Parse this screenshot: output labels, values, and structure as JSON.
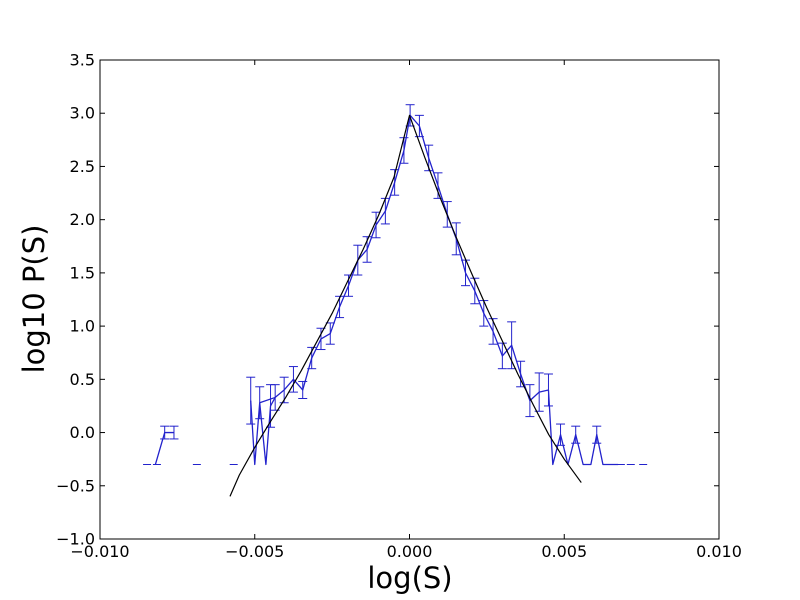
{
  "chart_data": {
    "type": "line",
    "title": "",
    "xlabel": "log(S)",
    "ylabel": "log10 P(S)",
    "xlim": [
      -0.01,
      0.01
    ],
    "ylim": [
      -1.0,
      3.5
    ],
    "x_ticks": [
      -0.01,
      -0.005,
      0.0,
      0.005,
      0.01
    ],
    "x_tick_labels": [
      "−0.010",
      "−0.005",
      "0.000",
      "0.005",
      "0.010"
    ],
    "y_ticks": [
      -1.0,
      -0.5,
      0.0,
      0.5,
      1.0,
      1.5,
      2.0,
      2.5,
      3.0,
      3.5
    ],
    "y_tick_labels": [
      "−1.0",
      "−0.5",
      "0.0",
      "0.5",
      "1.0",
      "1.5",
      "2.0",
      "2.5",
      "3.0",
      "3.5"
    ],
    "grid": false,
    "legend": "none",
    "colors": {
      "data": "#2222cc",
      "fit": "#000000"
    },
    "series": [
      {
        "style": "errorbar-line",
        "points": [
          {
            "x": -0.00484,
            "y": 0.28,
            "err": 0.15
          },
          {
            "x": -0.00434,
            "y": 0.33,
            "err": 0.12
          },
          {
            "x": -0.00405,
            "y": 0.4,
            "err": 0.12
          },
          {
            "x": -0.00375,
            "y": 0.5,
            "err": 0.12
          },
          {
            "x": -0.00345,
            "y": 0.4,
            "err": 0.08
          },
          {
            "x": -0.00316,
            "y": 0.7,
            "err": 0.1
          },
          {
            "x": -0.00286,
            "y": 0.88,
            "err": 0.1
          },
          {
            "x": -0.00256,
            "y": 0.93,
            "err": 0.1
          },
          {
            "x": -0.00226,
            "y": 1.18,
            "err": 0.1
          },
          {
            "x": -0.00197,
            "y": 1.38,
            "err": 0.1
          },
          {
            "x": -0.00167,
            "y": 1.62,
            "err": 0.14
          },
          {
            "x": -0.00137,
            "y": 1.72,
            "err": 0.12
          },
          {
            "x": -0.00108,
            "y": 1.95,
            "err": 0.12
          },
          {
            "x": -0.00078,
            "y": 2.08,
            "err": 0.12
          },
          {
            "x": -0.00048,
            "y": 2.35,
            "err": 0.12
          },
          {
            "x": -0.00018,
            "y": 2.65,
            "err": 0.12
          },
          {
            "x": 2e-05,
            "y": 2.98,
            "err": 0.1
          },
          {
            "x": 0.00032,
            "y": 2.88,
            "err": 0.1
          },
          {
            "x": 0.00062,
            "y": 2.58,
            "err": 0.12
          },
          {
            "x": 0.00092,
            "y": 2.32,
            "err": 0.12
          },
          {
            "x": 0.00122,
            "y": 2.05,
            "err": 0.12
          },
          {
            "x": 0.00151,
            "y": 1.82,
            "err": 0.15
          },
          {
            "x": 0.00181,
            "y": 1.5,
            "err": 0.12
          },
          {
            "x": 0.00211,
            "y": 1.33,
            "err": 0.12
          },
          {
            "x": 0.0024,
            "y": 1.12,
            "err": 0.12
          },
          {
            "x": 0.0027,
            "y": 0.95,
            "err": 0.12
          },
          {
            "x": 0.003,
            "y": 0.72,
            "err": 0.12
          },
          {
            "x": 0.0033,
            "y": 0.82,
            "err": 0.22
          },
          {
            "x": 0.00359,
            "y": 0.55,
            "err": 0.12
          },
          {
            "x": 0.00389,
            "y": 0.3,
            "err": 0.15
          },
          {
            "x": 0.00419,
            "y": 0.38,
            "err": 0.18
          },
          {
            "x": 0.00449,
            "y": 0.4,
            "err": 0.15
          }
        ]
      },
      {
        "style": "line",
        "points": [
          {
            "x": -0.00821,
            "y": -0.3
          },
          {
            "x": -0.00791,
            "y": 0.0
          },
          {
            "x": -0.00761,
            "y": 0.0
          }
        ]
      },
      {
        "style": "line",
        "points": [
          {
            "x": -0.00513,
            "y": 0.3
          },
          {
            "x": -0.005,
            "y": -0.3
          },
          {
            "x": -0.00484,
            "y": 0.28
          },
          {
            "x": -0.00464,
            "y": -0.3
          },
          {
            "x": -0.00449,
            "y": 0.25
          },
          {
            "x": -0.00434,
            "y": 0.33
          }
        ]
      },
      {
        "style": "line",
        "points": [
          {
            "x": 0.00449,
            "y": 0.4
          },
          {
            "x": 0.00463,
            "y": -0.3
          },
          {
            "x": 0.00488,
            "y": -0.02
          },
          {
            "x": 0.00512,
            "y": -0.3
          },
          {
            "x": 0.00537,
            "y": -0.02
          },
          {
            "x": 0.00561,
            "y": -0.3
          },
          {
            "x": 0.00586,
            "y": -0.3
          },
          {
            "x": 0.00605,
            "y": -0.02
          },
          {
            "x": 0.00625,
            "y": -0.3
          },
          {
            "x": 0.00674,
            "y": -0.3
          }
        ]
      },
      {
        "style": "errorbars-only",
        "points": [
          {
            "x": -0.00791,
            "y": 0.0,
            "err": 0.06
          },
          {
            "x": -0.00761,
            "y": 0.0,
            "err": 0.06
          },
          {
            "x": -0.00513,
            "y": 0.3,
            "err": 0.22
          },
          {
            "x": -0.00449,
            "y": 0.25,
            "err": 0.2
          },
          {
            "x": 0.00488,
            "y": -0.02,
            "err": 0.1
          },
          {
            "x": 0.00537,
            "y": -0.02,
            "err": 0.08
          },
          {
            "x": 0.00605,
            "y": -0.02,
            "err": 0.08
          }
        ]
      },
      {
        "style": "dashes",
        "points": [
          {
            "x": -0.00848,
            "y": -0.3
          },
          {
            "x": -0.00816,
            "y": -0.3
          },
          {
            "x": -0.00687,
            "y": -0.3
          },
          {
            "x": -0.00568,
            "y": -0.3
          },
          {
            "x": 0.00642,
            "y": -0.3
          },
          {
            "x": 0.00683,
            "y": -0.3
          },
          {
            "x": 0.00715,
            "y": -0.3
          },
          {
            "x": 0.00755,
            "y": -0.3
          }
        ]
      },
      {
        "style": "fit",
        "points": [
          {
            "x": -0.0058,
            "y": -0.6
          },
          {
            "x": -0.0055,
            "y": -0.4
          },
          {
            "x": -0.005,
            "y": -0.14
          },
          {
            "x": -0.0045,
            "y": 0.1
          },
          {
            "x": -0.004,
            "y": 0.33
          },
          {
            "x": -0.0035,
            "y": 0.58
          },
          {
            "x": -0.003,
            "y": 0.85
          },
          {
            "x": -0.0025,
            "y": 1.12
          },
          {
            "x": -0.002,
            "y": 1.42
          },
          {
            "x": -0.0015,
            "y": 1.72
          },
          {
            "x": -0.001,
            "y": 2.04
          },
          {
            "x": -0.0005,
            "y": 2.4
          },
          {
            "x": 0.0,
            "y": 2.98
          },
          {
            "x": 0.0005,
            "y": 2.58
          },
          {
            "x": 0.001,
            "y": 2.2
          },
          {
            "x": 0.0015,
            "y": 1.84
          },
          {
            "x": 0.002,
            "y": 1.5
          },
          {
            "x": 0.0025,
            "y": 1.17
          },
          {
            "x": 0.003,
            "y": 0.86
          },
          {
            "x": 0.0035,
            "y": 0.55
          },
          {
            "x": 0.004,
            "y": 0.26
          },
          {
            "x": 0.0045,
            "y": -0.02
          },
          {
            "x": 0.005,
            "y": -0.25
          },
          {
            "x": 0.00555,
            "y": -0.47
          }
        ]
      }
    ]
  }
}
